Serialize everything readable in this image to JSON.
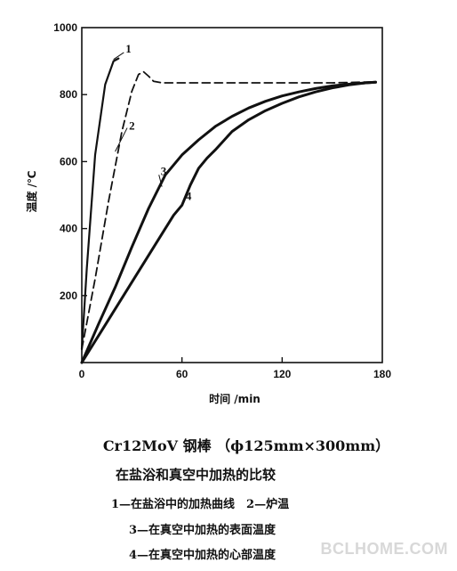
{
  "chart_data": {
    "type": "line",
    "xlabel": "时间 /min",
    "ylabel": "温度 /℃",
    "xlim": [
      0,
      180
    ],
    "ylim": [
      0,
      1000
    ],
    "xticks": [
      "0",
      "60",
      "120",
      "180"
    ],
    "yticks": [
      "200",
      "400",
      "600",
      "800",
      "1000"
    ],
    "grid": false,
    "series": [
      {
        "name": "1",
        "style": "solid",
        "width": 2.2,
        "x": [
          0,
          3,
          8,
          14,
          19,
          22
        ],
        "y": [
          40,
          280,
          620,
          830,
          900,
          908
        ]
      },
      {
        "name": "2",
        "style": "dashed",
        "width": 1.8,
        "x": [
          0,
          8,
          16,
          24,
          30,
          34,
          37,
          40,
          43,
          48,
          60,
          90,
          120,
          150,
          176
        ],
        "y": [
          40,
          250,
          480,
          690,
          810,
          860,
          868,
          855,
          840,
          835,
          835,
          835,
          835,
          835,
          838
        ]
      },
      {
        "name": "3",
        "style": "solid",
        "width": 3,
        "x": [
          0,
          10,
          20,
          30,
          40,
          50,
          60,
          70,
          80,
          90,
          100,
          110,
          120,
          130,
          140,
          150,
          160,
          170,
          176
        ],
        "y": [
          0,
          115,
          225,
          345,
          460,
          560,
          620,
          665,
          705,
          735,
          760,
          780,
          796,
          808,
          818,
          826,
          831,
          835,
          837
        ]
      },
      {
        "name": "4",
        "style": "solid",
        "width": 3,
        "x": [
          0,
          10,
          20,
          30,
          40,
          50,
          55,
          60,
          65,
          70,
          75,
          80,
          90,
          100,
          110,
          120,
          130,
          140,
          150,
          160,
          170,
          176
        ],
        "y": [
          0,
          80,
          160,
          240,
          320,
          400,
          440,
          470,
          530,
          580,
          610,
          635,
          690,
          725,
          752,
          774,
          793,
          808,
          820,
          829,
          835,
          837
        ]
      }
    ],
    "labels": [
      {
        "text": "1",
        "x": 22,
        "y": 920
      },
      {
        "text": "2",
        "x": 24,
        "y": 690
      },
      {
        "text": "3",
        "x": 43,
        "y": 555
      },
      {
        "text": "4",
        "x": 58,
        "y": 480
      }
    ]
  },
  "caption": {
    "title": "Cr12MoV 钢棒 （ϕ125mm×300mm）",
    "subtitle": "在盐浴和真空中加热的比较",
    "line1": "1—在盐浴中的加热曲线　2—炉温",
    "line2": "3—在真空中加热的表面温度",
    "line3": "4—在真空中加热的心部温度"
  },
  "watermark": "BCLHOME.COM"
}
